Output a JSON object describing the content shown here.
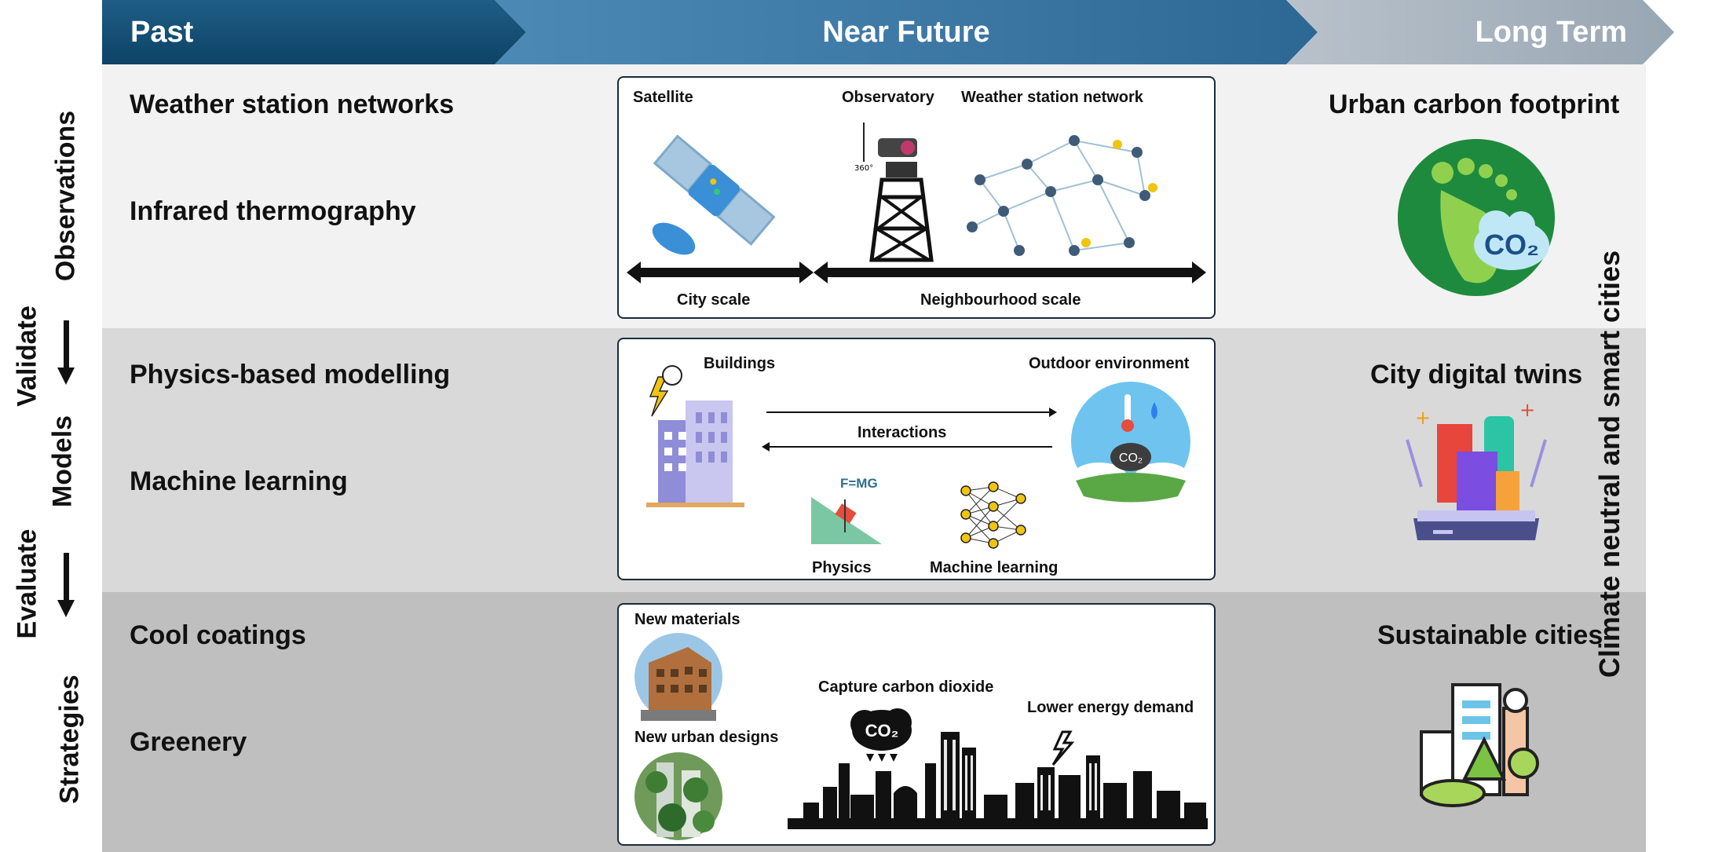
{
  "header": {
    "past": "Past",
    "near_future": "Near Future",
    "long_term": "Long Term"
  },
  "side": {
    "observations": "Observations",
    "validate": "Validate",
    "models": "Models",
    "evaluate": "Evaluate",
    "strategies": "Strategies",
    "climate": "Climate neutral and smart cities"
  },
  "rows": {
    "observations": {
      "left1": "Weather station networks",
      "left2": "Infrared thermography",
      "right": "Urban carbon footprint",
      "box": {
        "satellite": "Satellite",
        "observatory": "Observatory",
        "weather_network": "Weather station network",
        "city_scale": "City scale",
        "neighbourhood_scale": "Neighbourhood scale",
        "cam_label": "360°"
      }
    },
    "models": {
      "left1": "Physics-based modelling",
      "left2": "Machine learning",
      "right": "City digital twins",
      "box": {
        "buildings": "Buildings",
        "outdoor": "Outdoor environment",
        "interactions": "Interactions",
        "physics": "Physics",
        "machine_learning": "Machine learning",
        "formula": "F=MG",
        "co2": "CO₂"
      }
    },
    "strategies": {
      "left1": "Cool coatings",
      "left2": "Greenery",
      "right": "Sustainable cities",
      "box": {
        "new_materials": "New materials",
        "new_urban_designs": "New urban designs",
        "capture": "Capture carbon dioxide",
        "lower_energy": "Lower energy demand",
        "co2": "CO₂"
      }
    }
  },
  "icons": {
    "footprint_co2": "CO₂"
  },
  "colors": {
    "past": "#0d4366",
    "near_future": "#3b76a3",
    "long_term": "#98a6b3",
    "row1": "#f2f2f2",
    "row2": "#d9d9d9",
    "row3": "#bfbfbf"
  }
}
